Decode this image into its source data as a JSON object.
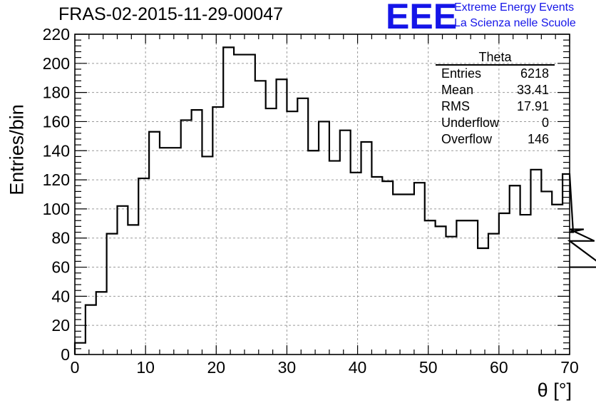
{
  "header": {
    "title": "FRAS-02-2015-11-29-00047",
    "logo_text": "EEE",
    "logo_line1": "Extreme Energy Events",
    "logo_line2": "La Scienza nelle Scuole"
  },
  "stats": {
    "title": "Theta",
    "rows": [
      {
        "label": "Entries",
        "value": "6218"
      },
      {
        "label": "Mean",
        "value": "33.41"
      },
      {
        "label": "RMS",
        "value": "17.91"
      },
      {
        "label": "Underflow",
        "value": "0"
      },
      {
        "label": "Overflow",
        "value": "146"
      }
    ]
  },
  "colors": {
    "logo": "#1515e8",
    "line": "#000000",
    "grid": "#9a9a9a"
  },
  "chart_data": {
    "type": "histogram",
    "ylabel": "Entries/bin",
    "xlabel": "θ [°]",
    "xlim": [
      0,
      70
    ],
    "ylim": [
      0,
      220
    ],
    "x_ticks": [
      0,
      10,
      20,
      30,
      40,
      50,
      60,
      70
    ],
    "y_ticks": [
      0,
      20,
      40,
      60,
      80,
      100,
      120,
      140,
      160,
      180,
      200,
      220
    ],
    "grid": true,
    "bin_width": 1.5,
    "bin_edges_start": 0,
    "values": [
      8,
      34,
      43,
      83,
      102,
      89,
      121,
      153,
      142,
      142,
      161,
      168,
      136,
      170,
      211,
      206,
      206,
      188,
      169,
      189,
      167,
      176,
      140,
      160,
      133,
      154,
      125,
      146,
      122,
      119,
      110,
      110,
      118,
      92,
      88,
      81,
      92,
      92,
      73,
      83,
      97,
      116,
      96,
      127,
      112,
      103,
      124,
      84,
      86,
      78,
      60
    ]
  }
}
